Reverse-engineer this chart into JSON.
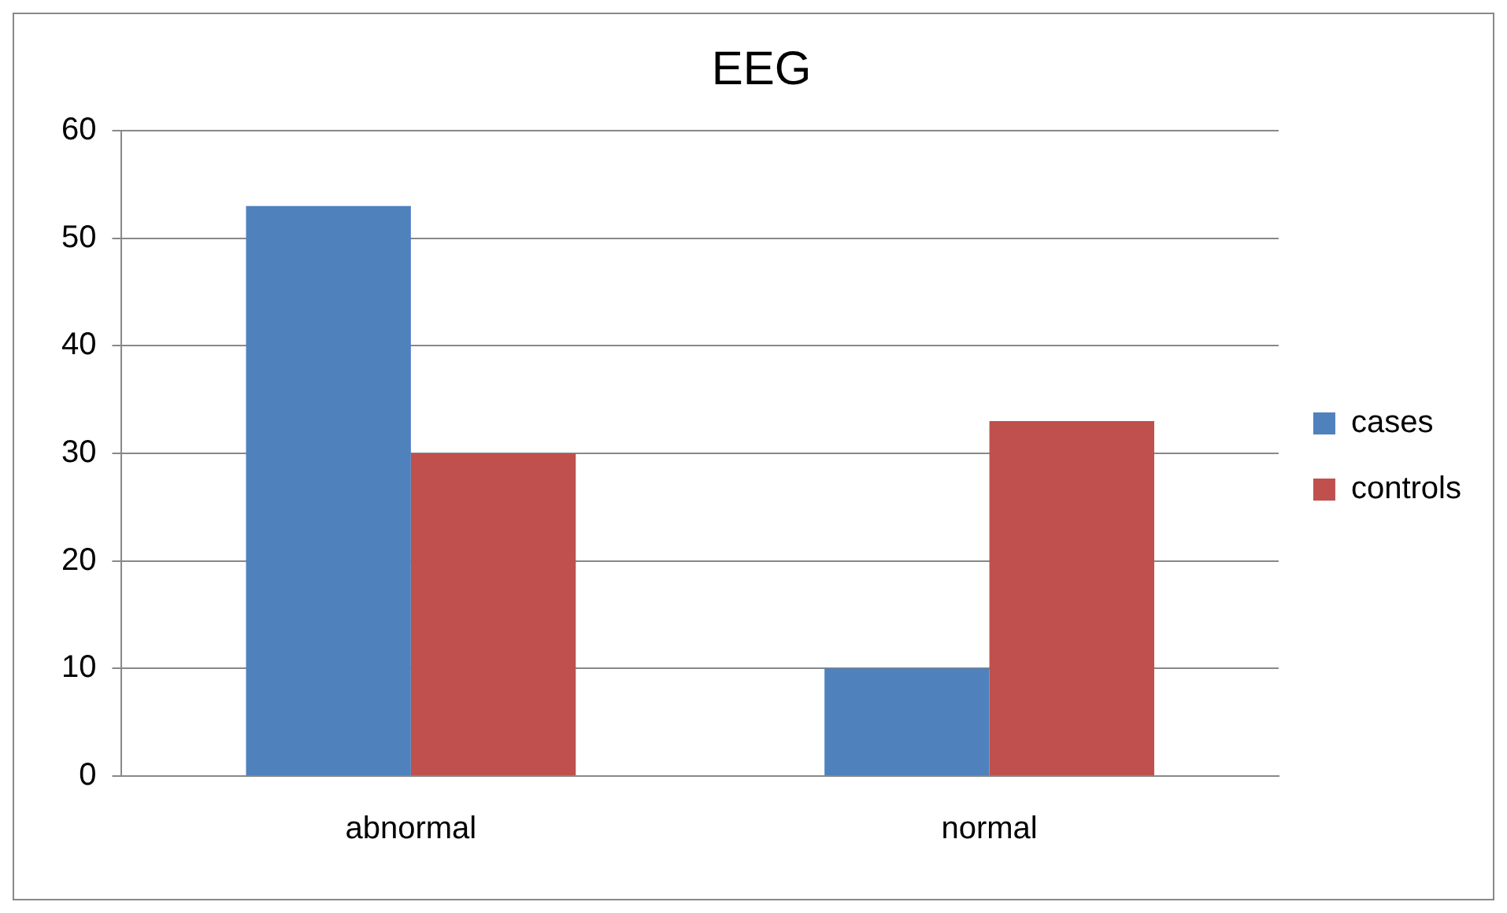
{
  "chart_data": {
    "type": "bar",
    "title": "EEG",
    "categories": [
      "abnormal",
      "normal"
    ],
    "series": [
      {
        "name": "cases",
        "color": "#4f81bd",
        "values": [
          53,
          10
        ]
      },
      {
        "name": "controls",
        "color": "#c0504d",
        "values": [
          30,
          33
        ]
      }
    ],
    "ylim": [
      0,
      60
    ],
    "yticks": [
      0,
      10,
      20,
      30,
      40,
      50,
      60
    ],
    "grid": "y",
    "legend": "right"
  }
}
